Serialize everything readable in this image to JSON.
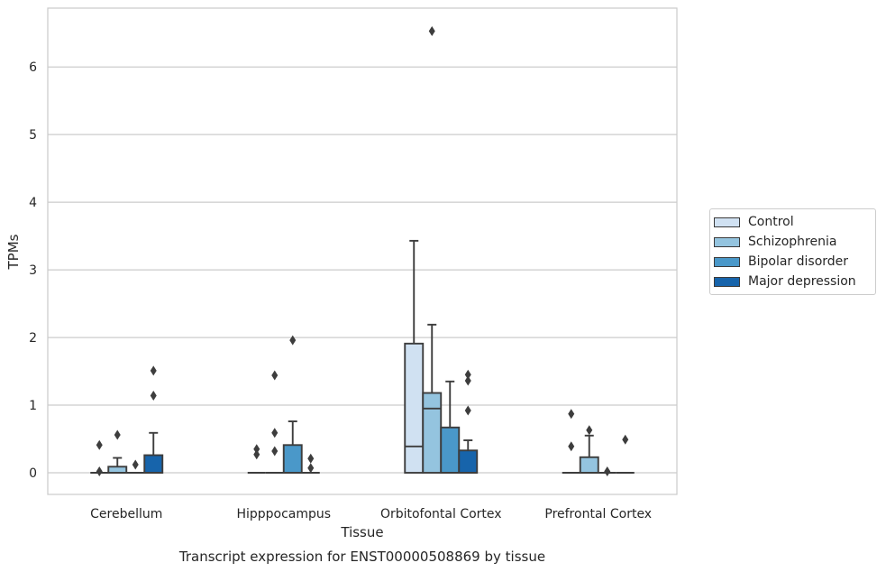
{
  "chart_data": {
    "type": "box",
    "title": "Transcript expression for ENST00000508869 by tissue",
    "xlabel": "Tissue",
    "ylabel": "TPMs",
    "ylim": [
      -0.32,
      6.87
    ],
    "yticks": [
      "0",
      "1",
      "2",
      "3",
      "4",
      "5",
      "6"
    ],
    "grid": "horizontal",
    "legend_position": "right",
    "categories": [
      "Cerebellum",
      "Hipppocampus",
      "Orbitofontal Cortex",
      "Prefrontal Cortex"
    ],
    "series": [
      {
        "name": "Control",
        "color": "#d0e1f2",
        "boxes": [
          {
            "q1": 0,
            "median": 0,
            "q3": 0,
            "whislo": 0,
            "whishi": 0,
            "fliers": [
              0.41,
              0.02
            ]
          },
          {
            "q1": 0,
            "median": 0,
            "q3": 0,
            "whislo": 0,
            "whishi": 0,
            "fliers": [
              0.35,
              0.27
            ]
          },
          {
            "q1": 0,
            "median": 0.39,
            "q3": 1.91,
            "whislo": 0,
            "whishi": 3.43,
            "fliers": []
          },
          {
            "q1": 0,
            "median": 0,
            "q3": 0,
            "whislo": 0,
            "whishi": 0,
            "fliers": [
              0.87,
              0.39
            ]
          }
        ]
      },
      {
        "name": "Schizophrenia",
        "color": "#94c4df",
        "boxes": [
          {
            "q1": 0,
            "median": 0,
            "q3": 0.09,
            "whislo": 0,
            "whishi": 0.22,
            "fliers": [
              0.56
            ]
          },
          {
            "q1": 0,
            "median": 0,
            "q3": 0,
            "whislo": 0,
            "whishi": 0,
            "fliers": [
              1.44,
              0.59,
              0.32
            ]
          },
          {
            "q1": 0,
            "median": 0.95,
            "q3": 1.18,
            "whislo": 0,
            "whishi": 2.19,
            "fliers": [
              6.53
            ]
          },
          {
            "q1": 0,
            "median": 0,
            "q3": 0.23,
            "whislo": 0,
            "whishi": 0.55,
            "fliers": [
              0.63
            ]
          }
        ]
      },
      {
        "name": "Bipolar disorder",
        "color": "#4a98c9",
        "boxes": [
          {
            "q1": 0,
            "median": 0,
            "q3": 0,
            "whislo": 0,
            "whishi": 0,
            "fliers": [
              0.12
            ]
          },
          {
            "q1": 0,
            "median": 0,
            "q3": 0.41,
            "whislo": 0,
            "whishi": 0.76,
            "fliers": [
              1.96
            ]
          },
          {
            "q1": 0,
            "median": 0,
            "q3": 0.67,
            "whislo": 0,
            "whishi": 1.35,
            "fliers": []
          },
          {
            "q1": 0,
            "median": 0,
            "q3": 0,
            "whislo": 0,
            "whishi": 0,
            "fliers": [
              0.02
            ]
          }
        ]
      },
      {
        "name": "Major depression",
        "color": "#1764ab",
        "boxes": [
          {
            "q1": 0,
            "median": 0,
            "q3": 0.26,
            "whislo": 0,
            "whishi": 0.59,
            "fliers": [
              1.51,
              1.14
            ]
          },
          {
            "q1": 0,
            "median": 0,
            "q3": 0,
            "whislo": 0,
            "whishi": 0,
            "fliers": [
              0.21,
              0.07
            ]
          },
          {
            "q1": 0,
            "median": 0,
            "q3": 0.33,
            "whislo": 0,
            "whishi": 0.48,
            "fliers": [
              1.45,
              1.36,
              0.92
            ]
          },
          {
            "q1": 0,
            "median": 0,
            "q3": 0,
            "whislo": 0,
            "whishi": 0,
            "fliers": [
              0.49
            ]
          }
        ]
      }
    ]
  }
}
